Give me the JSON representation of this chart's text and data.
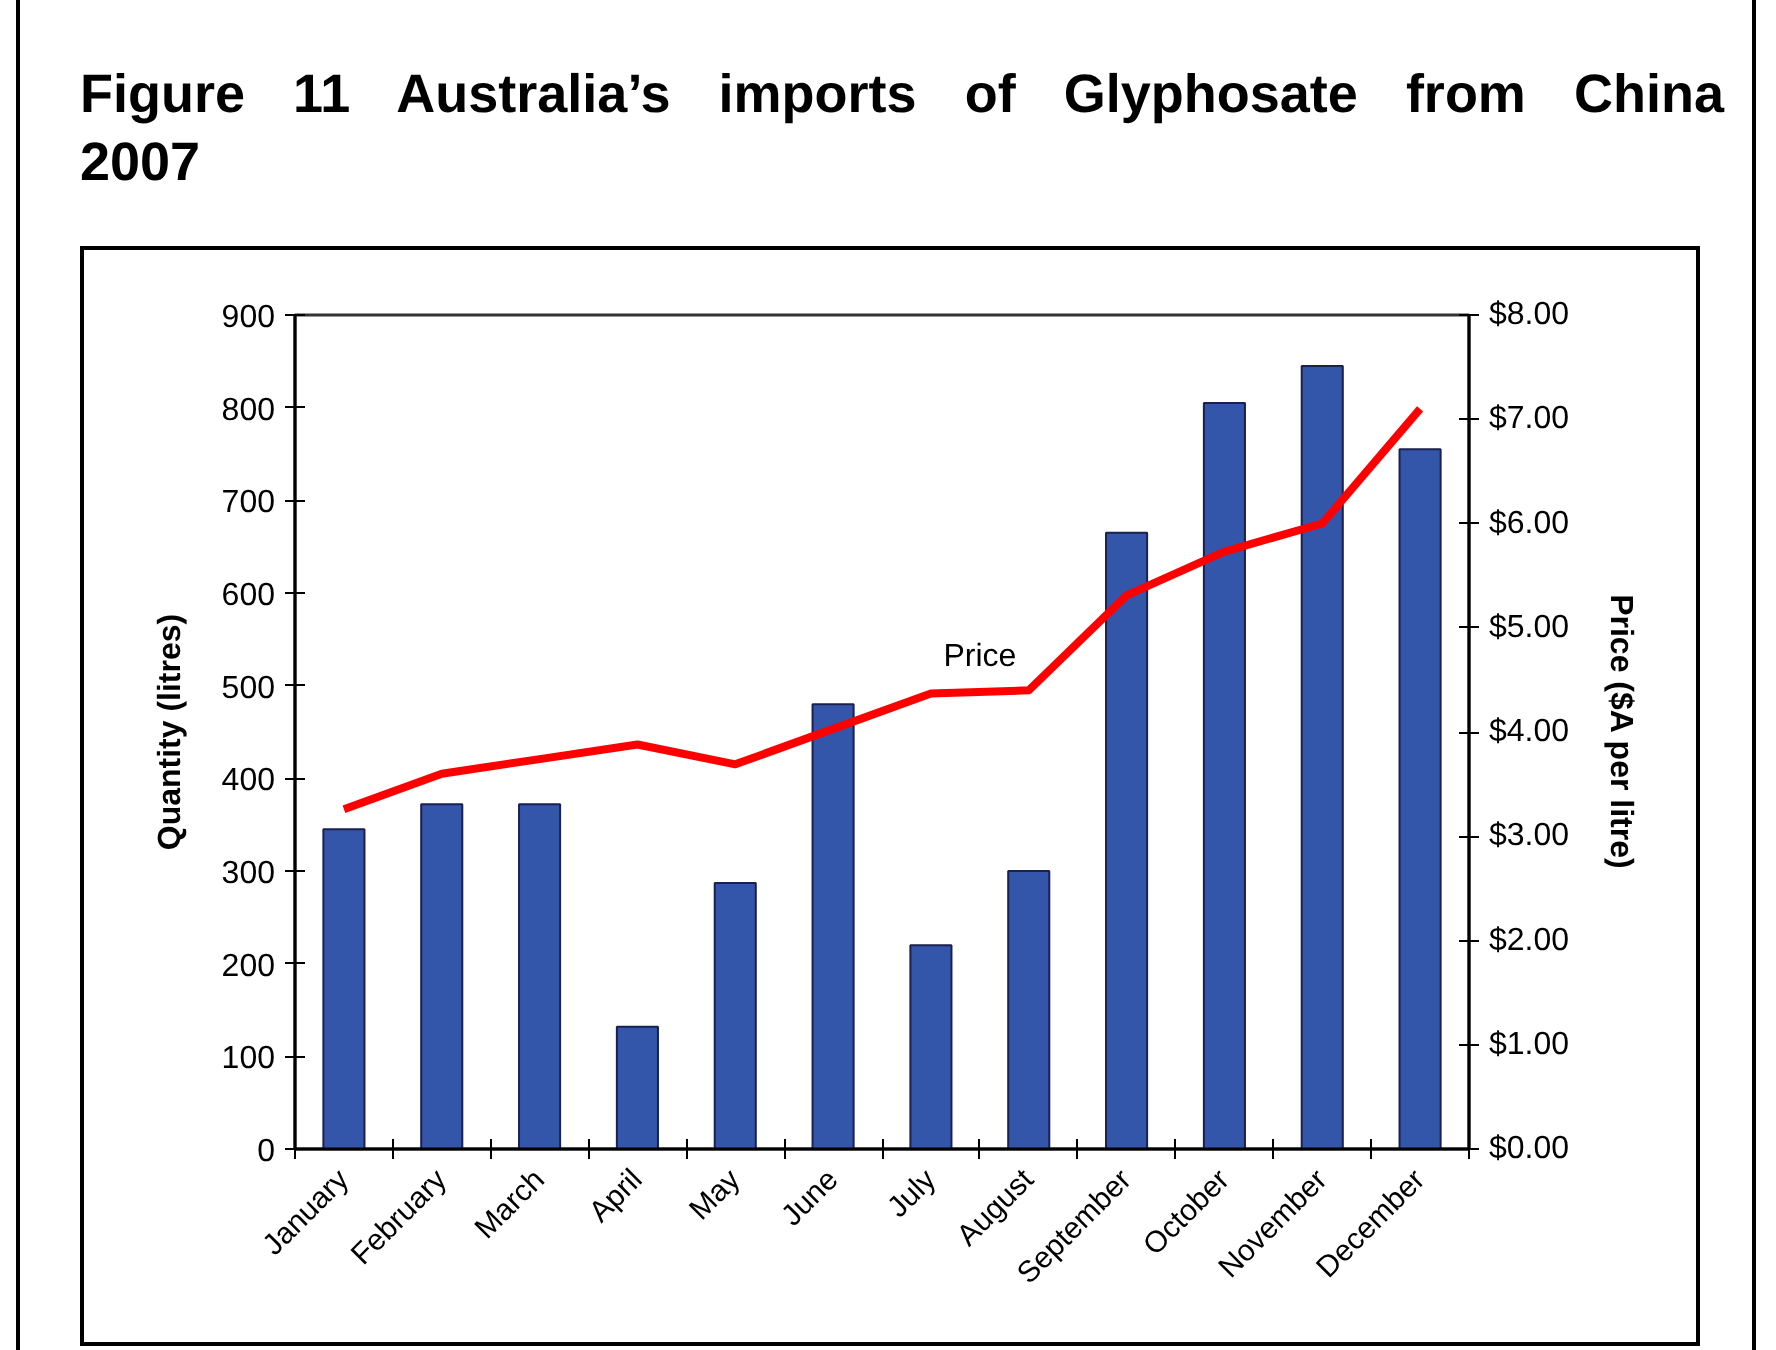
{
  "chart_data": {
    "type": "bar",
    "title": "Figure 11 Australia’s imports of Glyphosate from China 2007",
    "categories": [
      "January",
      "February",
      "March",
      "April",
      "May",
      "June",
      "July",
      "August",
      "September",
      "October",
      "November",
      "December"
    ],
    "ylabel": "Quantity (litres)",
    "y2label": "Price ($A per litre)",
    "ylim": [
      0,
      900
    ],
    "yticks": [
      0,
      100,
      200,
      300,
      400,
      500,
      600,
      700,
      800,
      900
    ],
    "y2lim": [
      0,
      8
    ],
    "y2ticks": [
      {
        "value": 0,
        "label": "$0.00"
      },
      {
        "value": 1,
        "label": "$1.00"
      },
      {
        "value": 2,
        "label": "$2.00"
      },
      {
        "value": 3,
        "label": "$3.00"
      },
      {
        "value": 4,
        "label": "$4.00"
      },
      {
        "value": 5,
        "label": "$5.00"
      },
      {
        "value": 6,
        "label": "$6.00"
      },
      {
        "value": 7,
        "label": "$7.00"
      },
      {
        "value": 8,
        "label": "$8.00"
      }
    ],
    "series": [
      {
        "color": "#3355aa",
        "values": [
          345,
          372,
          372,
          132,
          287,
          480,
          220,
          300,
          665,
          805,
          845,
          755
        ]
      },
      {
        "type": "line",
        "name": "Price",
        "color": "#ff0000",
        "axis": "y2",
        "values": [
          3.26,
          3.6,
          3.74,
          3.88,
          3.69,
          4.03,
          4.37,
          4.4,
          5.31,
          5.73,
          6.0,
          7.1
        ]
      }
    ],
    "grid": false
  }
}
